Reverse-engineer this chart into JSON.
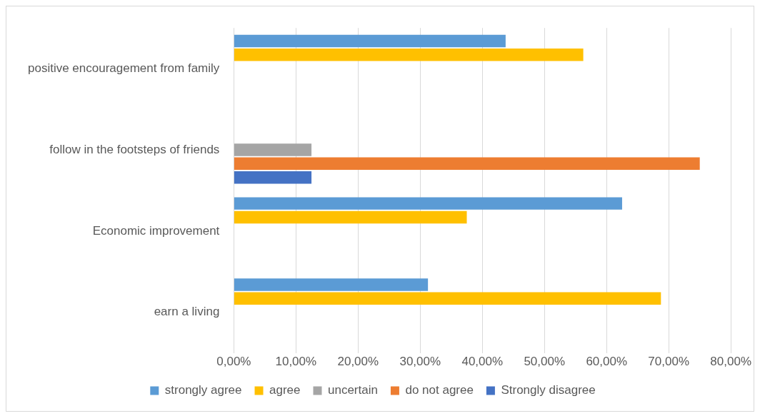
{
  "chart_data": {
    "type": "bar",
    "orientation": "horizontal",
    "categories": [
      "positive encouragement from family",
      "follow in the footsteps of friends",
      "Economic improvement",
      "earn a living"
    ],
    "series": [
      {
        "name": "strongly agree",
        "color": "#5b9bd5",
        "values": [
          43.75,
          null,
          62.5,
          31.25
        ]
      },
      {
        "name": "agree",
        "color": "#ffc000",
        "values": [
          56.25,
          null,
          37.5,
          68.75
        ]
      },
      {
        "name": "uncertain",
        "color": "#a5a5a5",
        "values": [
          null,
          12.5,
          null,
          null
        ]
      },
      {
        "name": "do not agree",
        "color": "#ed7d31",
        "values": [
          null,
          75,
          null,
          null
        ]
      },
      {
        "name": "Strongly disagree",
        "color": "#4472c4",
        "values": [
          null,
          12.5,
          null,
          null
        ]
      }
    ],
    "xlim": [
      0,
      80
    ],
    "xticks": [
      {
        "value": 0,
        "label": "0,00%"
      },
      {
        "value": 10,
        "label": "10,00%"
      },
      {
        "value": 20,
        "label": "20,00%"
      },
      {
        "value": 30,
        "label": "30,00%"
      },
      {
        "value": 40,
        "label": "40,00%"
      },
      {
        "value": 50,
        "label": "50,00%"
      },
      {
        "value": 60,
        "label": "60,00%"
      },
      {
        "value": 70,
        "label": "70,00%"
      },
      {
        "value": 80,
        "label": "80,00%"
      }
    ],
    "grid": "x",
    "legend": "bottom"
  }
}
